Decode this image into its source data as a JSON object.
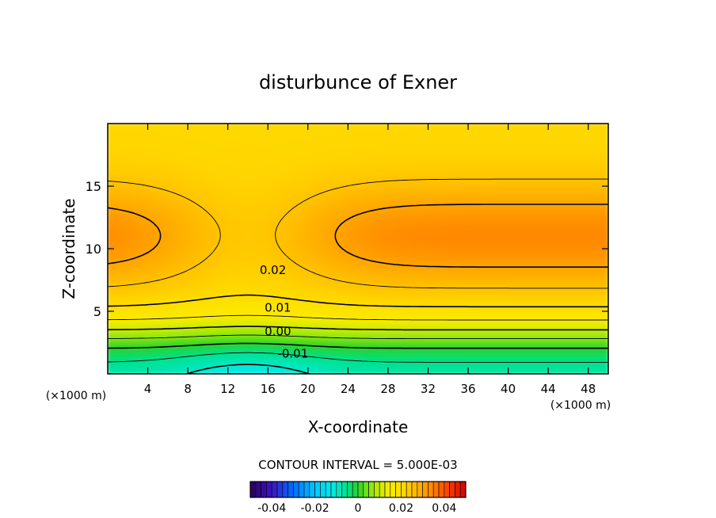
{
  "chart_data": {
    "type": "contour",
    "title": "disturbunce of Exner",
    "xlabel": "X-coordinate",
    "ylabel": "Z-coordinate",
    "x_unit_left": "(×1000 m)",
    "x_unit_right": "(×1000 m)",
    "xlim": [
      0,
      50
    ],
    "ylim": [
      0,
      20
    ],
    "x_ticks": [
      4,
      8,
      12,
      16,
      20,
      24,
      28,
      32,
      36,
      40,
      44,
      48
    ],
    "y_ticks": [
      5,
      10,
      15
    ],
    "contour_interval_text": "CONTOUR INTERVAL = 5.000E-03",
    "contour_labels": [
      {
        "text": "0.02",
        "x": 16.5,
        "z": 8.3
      },
      {
        "text": "0.01",
        "x": 17.0,
        "z": 5.3
      },
      {
        "text": "0.00",
        "x": 17.0,
        "z": 3.4
      },
      {
        "text": "-0.01",
        "x": 18.5,
        "z": 1.6
      }
    ],
    "colorbar": {
      "range": [
        -0.05,
        0.05
      ],
      "tick_values": [
        -0.04,
        -0.02,
        0,
        0.02,
        0.04
      ],
      "tick_labels": [
        "-0.04",
        "-0.02",
        "0",
        "0.02",
        "0.04"
      ]
    }
  }
}
